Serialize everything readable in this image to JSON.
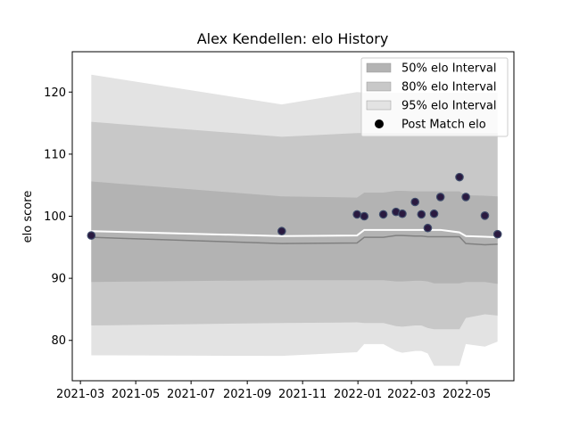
{
  "chart_data": {
    "type": "line",
    "title": "Alex Kendellen: elo History",
    "xlabel": "",
    "ylabel": "elo score",
    "x_axis": {
      "type": "date",
      "range": [
        "2021-02-20",
        "2022-06-22"
      ],
      "ticks": [
        {
          "date": "2021-03-01",
          "label": "2021-03"
        },
        {
          "date": "2021-05-01",
          "label": "2021-05"
        },
        {
          "date": "2021-07-01",
          "label": "2021-07"
        },
        {
          "date": "2021-09-01",
          "label": "2021-09"
        },
        {
          "date": "2021-11-01",
          "label": "2021-11"
        },
        {
          "date": "2022-01-01",
          "label": "2022-01"
        },
        {
          "date": "2022-03-01",
          "label": "2022-03"
        },
        {
          "date": "2022-05-01",
          "label": "2022-05"
        }
      ]
    },
    "y_axis": {
      "range": [
        73.5,
        126.5
      ],
      "ticks": [
        80,
        90,
        100,
        110,
        120
      ]
    },
    "grid": false,
    "legend": {
      "position": "top-right",
      "entries": [
        {
          "label": "50% elo Interval",
          "kind": "band",
          "color": "#b3b3b3"
        },
        {
          "label": "80% elo Interval",
          "kind": "band",
          "color": "#c8c8c8"
        },
        {
          "label": "95% elo Interval",
          "kind": "band",
          "color": "#e3e3e3"
        },
        {
          "label": "Post Match elo",
          "kind": "marker",
          "color": "#000000"
        }
      ]
    },
    "colors": {
      "band95": "#e3e3e3",
      "band80": "#c8c8c8",
      "band50": "#b3b3b3",
      "mean_line": "#ffffff",
      "median_line": "#808080",
      "point_face": "#2a1a40",
      "point_edge": "#3f4c6b"
    },
    "dates": [
      "2021-03-13",
      "2021-10-09",
      "2021-12-31",
      "2022-01-08",
      "2022-01-29",
      "2022-02-12",
      "2022-02-19",
      "2022-03-05",
      "2022-03-12",
      "2022-03-19",
      "2022-03-26",
      "2022-04-02",
      "2022-04-23",
      "2022-04-30",
      "2022-05-21",
      "2022-06-04"
    ],
    "series": [
      {
        "name": "95% elo Interval",
        "role": "band",
        "level": "95",
        "lower": [
          77.6,
          77.5,
          78.1,
          79.4,
          79.4,
          78.3,
          78.0,
          78.3,
          78.3,
          77.9,
          75.9,
          75.9,
          75.9,
          79.4,
          79.0,
          79.8
        ],
        "upper": [
          122.8,
          118.0,
          120.0,
          119.9,
          119.9,
          119.9,
          119.9,
          119.9,
          119.9,
          119.9,
          119.9,
          119.9,
          119.9,
          119.9,
          119.9,
          119.9
        ]
      },
      {
        "name": "80% elo Interval",
        "role": "band",
        "level": "80",
        "lower": [
          82.4,
          82.8,
          82.9,
          82.8,
          82.8,
          82.3,
          82.2,
          82.4,
          82.4,
          82.0,
          81.8,
          81.8,
          81.8,
          83.6,
          84.2,
          84.0
        ],
        "upper": [
          115.2,
          112.8,
          113.4,
          113.4,
          113.4,
          113.4,
          113.4,
          113.4,
          113.4,
          113.4,
          113.4,
          113.4,
          113.4,
          113.4,
          113.4,
          113.4
        ]
      },
      {
        "name": "50% elo Interval",
        "role": "band",
        "level": "50",
        "lower": [
          89.4,
          89.7,
          89.7,
          89.7,
          89.7,
          89.5,
          89.5,
          89.6,
          89.6,
          89.5,
          89.2,
          89.2,
          89.2,
          89.4,
          89.4,
          89.1
        ],
        "upper": [
          105.6,
          103.2,
          103.0,
          103.8,
          103.8,
          104.1,
          104.1,
          104.0,
          104.0,
          104.0,
          104.0,
          104.0,
          104.0,
          103.4,
          103.3,
          103.2
        ]
      },
      {
        "name": "mean",
        "role": "line",
        "values": [
          97.6,
          96.8,
          96.9,
          97.8,
          97.8,
          97.8,
          97.8,
          97.8,
          97.8,
          97.8,
          97.8,
          97.8,
          97.4,
          96.8,
          96.7,
          96.6
        ]
      },
      {
        "name": "median",
        "role": "line",
        "values": [
          96.6,
          95.6,
          95.7,
          96.6,
          96.6,
          96.9,
          96.9,
          96.8,
          96.8,
          96.7,
          96.7,
          96.7,
          96.7,
          95.6,
          95.4,
          95.5
        ]
      },
      {
        "name": "Post Match elo",
        "role": "points",
        "values": [
          96.9,
          97.6,
          100.3,
          100.0,
          100.3,
          100.7,
          100.4,
          102.3,
          100.3,
          98.1,
          100.4,
          103.1,
          106.3,
          103.1,
          100.1,
          97.1
        ]
      }
    ]
  }
}
